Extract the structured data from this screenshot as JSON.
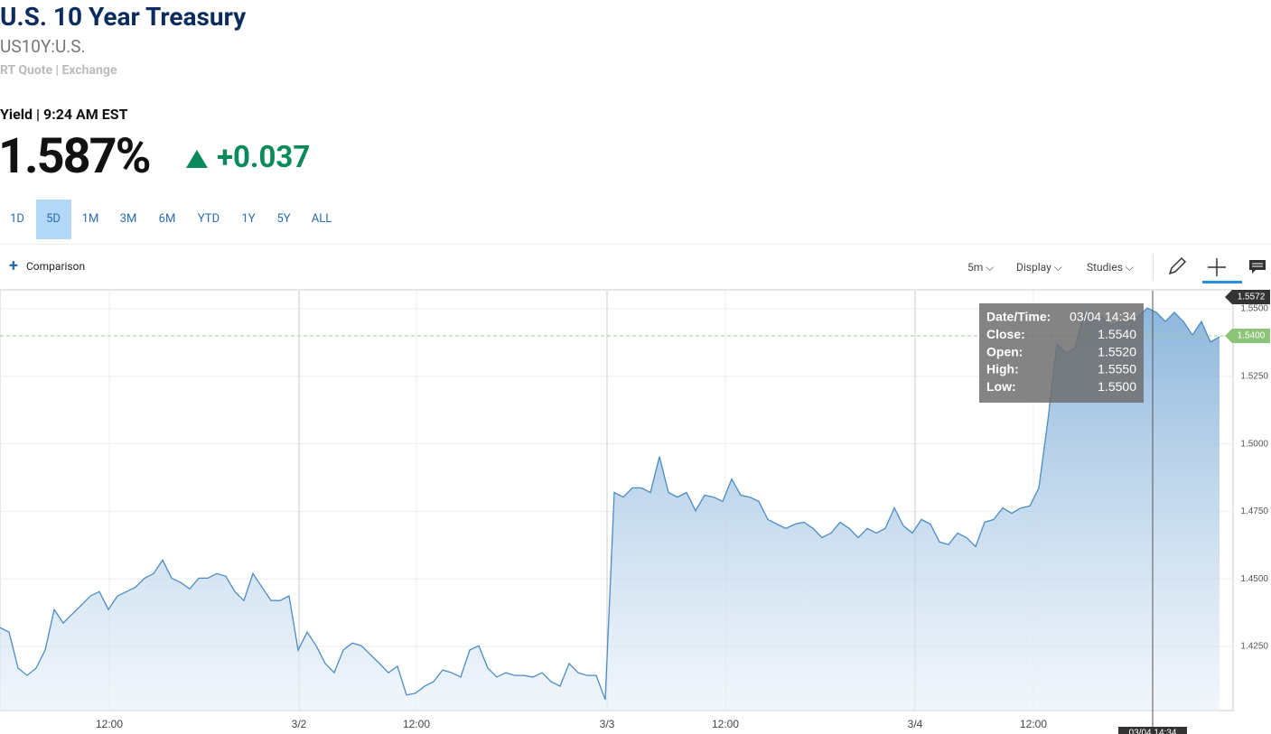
{
  "header": {
    "title": "U.S. 10 Year Treasury",
    "symbol": "US10Y:U.S.",
    "source": "RT Quote | Exchange",
    "quote_label": "Yield | 9:24 AM EST",
    "price": "1.587%",
    "change": "+0.037"
  },
  "ranges": {
    "items": [
      "1D",
      "5D",
      "1M",
      "3M",
      "6M",
      "YTD",
      "1Y",
      "5Y",
      "ALL"
    ],
    "active": "5D"
  },
  "toolbar": {
    "comparison": "Comparison",
    "interval": "5m",
    "display": "Display",
    "studies": "Studies"
  },
  "chart_data": {
    "type": "area",
    "color": "#4a8cc5",
    "grid": true,
    "values": [
      1.432,
      1.4303,
      1.417,
      1.4143,
      1.417,
      1.4237,
      1.4387,
      1.4337,
      1.437,
      1.4403,
      1.4437,
      1.4453,
      1.4387,
      1.4437,
      1.4453,
      1.447,
      1.4503,
      1.452,
      1.457,
      1.4503,
      1.4487,
      1.4463,
      1.4503,
      1.4503,
      1.452,
      1.451,
      1.4453,
      1.442,
      1.452,
      1.447,
      1.442,
      1.442,
      1.4437,
      1.4237,
      1.4303,
      1.4253,
      1.4187,
      1.4153,
      1.4237,
      1.4263,
      1.4253,
      1.422,
      1.4187,
      1.4153,
      1.4177,
      1.407,
      1.4077,
      1.4103,
      1.412,
      1.4163,
      1.4153,
      1.4137,
      1.4237,
      1.4253,
      1.417,
      1.4137,
      1.4153,
      1.4143,
      1.4143,
      1.4137,
      1.4153,
      1.412,
      1.4103,
      1.4187,
      1.4153,
      1.4143,
      1.4143,
      1.4053,
      1.482,
      1.4803,
      1.4837,
      1.4837,
      1.482,
      1.4953,
      1.482,
      1.4803,
      1.482,
      1.4753,
      1.481,
      1.4803,
      1.4787,
      1.487,
      1.481,
      1.4803,
      1.4787,
      1.472,
      1.4703,
      1.4687,
      1.4703,
      1.471,
      1.4687,
      1.4653,
      1.467,
      1.471,
      1.4687,
      1.4653,
      1.4687,
      1.467,
      1.4687,
      1.4763,
      1.4697,
      1.467,
      1.472,
      1.4703,
      1.4637,
      1.4627,
      1.467,
      1.4653,
      1.462,
      1.471,
      1.472,
      1.4763,
      1.4743,
      1.4763,
      1.477,
      1.4837,
      1.5087,
      1.537,
      1.5337,
      1.5353,
      1.5487,
      1.5453,
      1.547,
      1.5437,
      1.5453,
      1.5453,
      1.547,
      1.5503,
      1.5487,
      1.5453,
      1.5487,
      1.5453,
      1.5403,
      1.5453,
      1.5377,
      1.5397
    ],
    "xlim": [
      0,
      136.5
    ],
    "xticks": [
      {
        "value": 12.1,
        "label": "12:00"
      },
      {
        "value": 33.1,
        "label": "3/2"
      },
      {
        "value": 46.1,
        "label": "12:00"
      },
      {
        "value": 67.2,
        "label": "3/3"
      },
      {
        "value": 80.3,
        "label": "12:00"
      },
      {
        "value": 101.3,
        "label": "3/4"
      },
      {
        "value": 114.4,
        "label": "12:00"
      }
    ],
    "ylim": [
      1.4013,
      1.5567
    ],
    "yticks": [
      {
        "value": 1.425,
        "label": "1.4250"
      },
      {
        "value": 1.45,
        "label": "1.4500"
      },
      {
        "value": 1.475,
        "label": "1.4750"
      },
      {
        "value": 1.5,
        "label": "1.5000"
      },
      {
        "value": 1.525,
        "label": "1.5250"
      },
      {
        "value": 1.55,
        "label": "1.5500"
      }
    ],
    "high_tag": {
      "value": 1.5572,
      "label": "1.5572"
    },
    "last_tag": {
      "value": 1.54,
      "label": "1.5400"
    },
    "crosshair": {
      "value": 127.6,
      "label": "03/04 14:34"
    },
    "tooltip": [
      [
        "Date/Time:",
        "03/04 14:34"
      ],
      [
        "Close:",
        "1.5540"
      ],
      [
        "Open:",
        "1.5520"
      ],
      [
        "High:",
        "1.5550"
      ],
      [
        "Low:",
        "1.5500"
      ]
    ]
  }
}
